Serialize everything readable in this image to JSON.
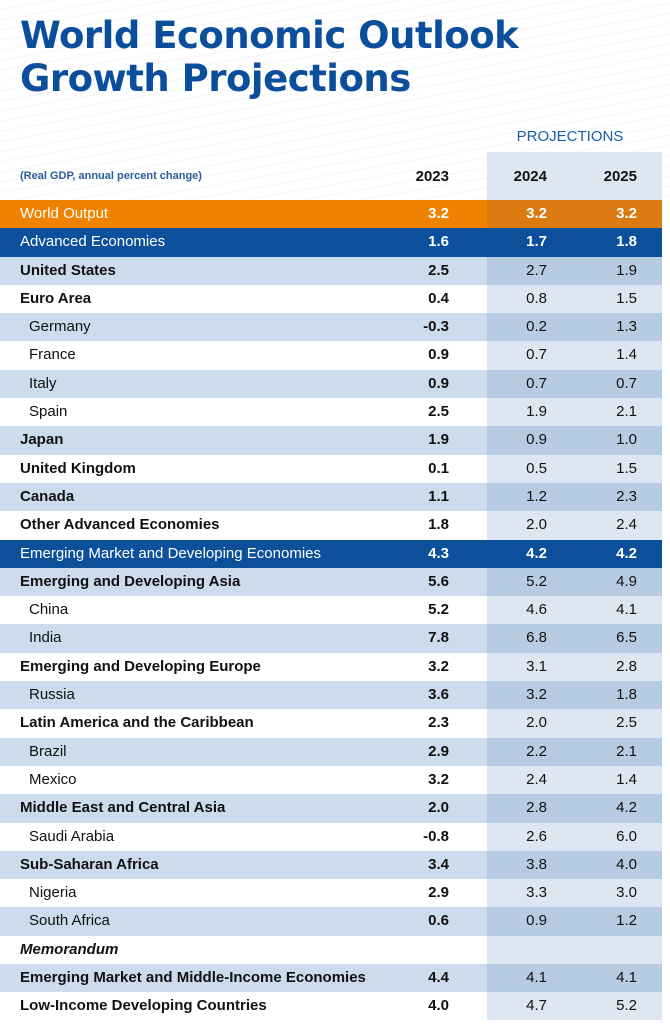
{
  "title_line1": "World Economic Outlook",
  "title_line2": "Growth Projections",
  "projections_label": "PROJECTIONS",
  "chart_data": {
    "type": "table",
    "title": "World Economic Outlook Growth Projections",
    "subtitle": "(Real GDP, annual percent change)",
    "columns": [
      "2023",
      "2024",
      "2025"
    ],
    "projection_columns": [
      "2024",
      "2025"
    ],
    "colors": {
      "world": "#ef8200",
      "aggregate": "#0c4f9b",
      "title": "#0b4f9c",
      "stripe": "#ccdcec"
    },
    "rows": [
      {
        "label": "World Output",
        "kind": "world",
        "values": [
          "3.2",
          "3.2",
          "3.2"
        ]
      },
      {
        "label": "Advanced Economies",
        "kind": "agg",
        "values": [
          "1.6",
          "1.7",
          "1.8"
        ]
      },
      {
        "label": "United States",
        "kind": "bold",
        "values": [
          "2.5",
          "2.7",
          "1.9"
        ]
      },
      {
        "label": "Euro Area",
        "kind": "bold",
        "values": [
          "0.4",
          "0.8",
          "1.5"
        ]
      },
      {
        "label": "Germany",
        "kind": "indent",
        "values": [
          "-0.3",
          "0.2",
          "1.3"
        ]
      },
      {
        "label": "France",
        "kind": "indent",
        "values": [
          "0.9",
          "0.7",
          "1.4"
        ]
      },
      {
        "label": "Italy",
        "kind": "indent",
        "values": [
          "0.9",
          "0.7",
          "0.7"
        ]
      },
      {
        "label": "Spain",
        "kind": "indent",
        "values": [
          "2.5",
          "1.9",
          "2.1"
        ]
      },
      {
        "label": "Japan",
        "kind": "bold",
        "values": [
          "1.9",
          "0.9",
          "1.0"
        ]
      },
      {
        "label": "United Kingdom",
        "kind": "bold",
        "values": [
          "0.1",
          "0.5",
          "1.5"
        ]
      },
      {
        "label": "Canada",
        "kind": "bold",
        "values": [
          "1.1",
          "1.2",
          "2.3"
        ]
      },
      {
        "label": "Other Advanced Economies",
        "kind": "bold",
        "values": [
          "1.8",
          "2.0",
          "2.4"
        ]
      },
      {
        "label": "Emerging Market and Developing Economies",
        "kind": "agg",
        "values": [
          "4.3",
          "4.2",
          "4.2"
        ]
      },
      {
        "label": "Emerging and Developing Asia",
        "kind": "bold",
        "values": [
          "5.6",
          "5.2",
          "4.9"
        ]
      },
      {
        "label": "China",
        "kind": "indent",
        "values": [
          "5.2",
          "4.6",
          "4.1"
        ]
      },
      {
        "label": "India",
        "kind": "indent",
        "values": [
          "7.8",
          "6.8",
          "6.5"
        ]
      },
      {
        "label": "Emerging and Developing Europe",
        "kind": "bold",
        "values": [
          "3.2",
          "3.1",
          "2.8"
        ]
      },
      {
        "label": "Russia",
        "kind": "indent",
        "values": [
          "3.6",
          "3.2",
          "1.8"
        ]
      },
      {
        "label": "Latin America and the Caribbean",
        "kind": "bold",
        "values": [
          "2.3",
          "2.0",
          "2.5"
        ]
      },
      {
        "label": "Brazil",
        "kind": "indent",
        "values": [
          "2.9",
          "2.2",
          "2.1"
        ]
      },
      {
        "label": "Mexico",
        "kind": "indent",
        "values": [
          "3.2",
          "2.4",
          "1.4"
        ]
      },
      {
        "label": "Middle East and Central Asia",
        "kind": "bold",
        "values": [
          "2.0",
          "2.8",
          "4.2"
        ]
      },
      {
        "label": "Saudi Arabia",
        "kind": "indent",
        "values": [
          "-0.8",
          "2.6",
          "6.0"
        ]
      },
      {
        "label": "Sub-Saharan Africa",
        "kind": "bold",
        "values": [
          "3.4",
          "3.8",
          "4.0"
        ]
      },
      {
        "label": "Nigeria",
        "kind": "indent",
        "values": [
          "2.9",
          "3.3",
          "3.0"
        ]
      },
      {
        "label": "South Africa",
        "kind": "indent",
        "values": [
          "0.6",
          "0.9",
          "1.2"
        ]
      },
      {
        "label": "Memorandum",
        "kind": "memo",
        "values": [
          "",
          "",
          ""
        ]
      },
      {
        "label": "Emerging Market and Middle-Income Economies",
        "kind": "bold",
        "values": [
          "4.4",
          "4.1",
          "4.1"
        ]
      },
      {
        "label": "Low-Income Developing Countries",
        "kind": "bold",
        "values": [
          "4.0",
          "4.7",
          "5.2"
        ]
      }
    ]
  }
}
